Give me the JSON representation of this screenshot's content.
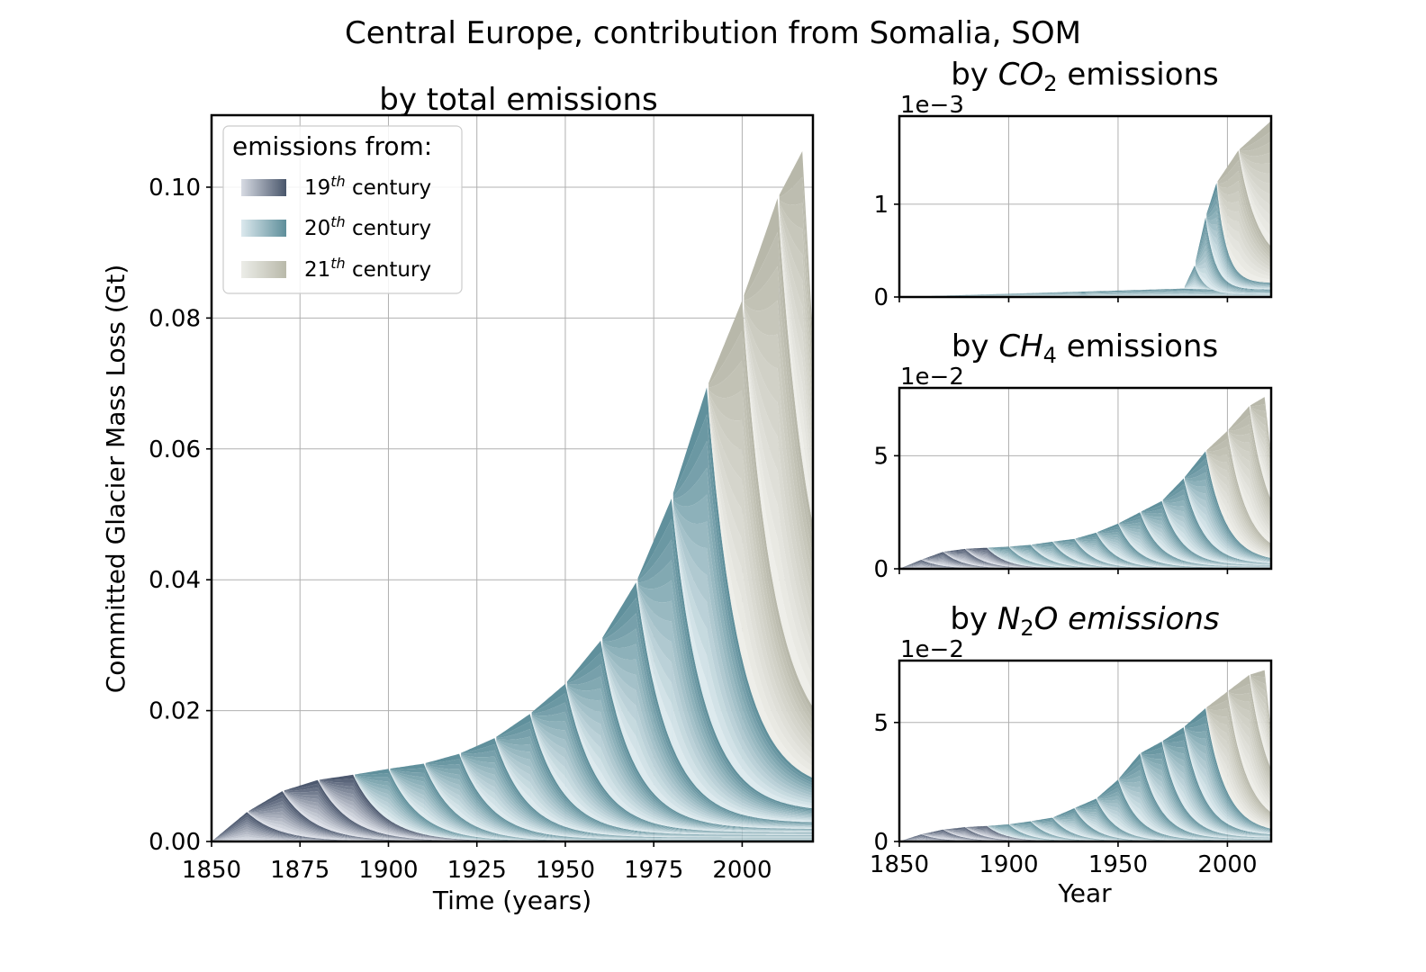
{
  "figure": {
    "suptitle": "Central Europe, contribution from Somalia, SOM"
  },
  "legend": {
    "title": "emissions from:",
    "entries": [
      {
        "base": "19",
        "sup": "th",
        "rest": " century",
        "colors": [
          "#d7dbe3",
          "#49566b"
        ]
      },
      {
        "base": "20",
        "sup": "th",
        "rest": " century",
        "colors": [
          "#dce9ee",
          "#5e8e9a"
        ]
      },
      {
        "base": "21",
        "sup": "th",
        "rest": " century",
        "colors": [
          "#ecede8",
          "#b9b9aa"
        ]
      }
    ]
  },
  "colors": {
    "c19_light": "#e2e5ec",
    "c19_dark": "#46536a",
    "c20_light": "#e3eef2",
    "c20_dark": "#5a8c98",
    "c21_light": "#f0f0ec",
    "c21_dark": "#b6b6a7"
  },
  "chart_data": [
    {
      "id": "total",
      "type": "area",
      "title": "by total emissions",
      "xlabel": "Time (years)",
      "ylabel": "Committed Glacier Mass Loss (Gt)",
      "xlim": [
        1850,
        2020
      ],
      "ylim": [
        0,
        0.111
      ],
      "xticks": [
        "1850",
        "1875",
        "1900",
        "1925",
        "1950",
        "1975",
        "2000"
      ],
      "yticks": [
        "0.00",
        "0.02",
        "0.04",
        "0.06",
        "0.08",
        "0.10"
      ],
      "offset_label": "",
      "grid": true,
      "legend_position": "upper-left",
      "peaks": [
        {
          "x": 1860,
          "y": 0.0045
        },
        {
          "x": 1870,
          "y": 0.0077
        },
        {
          "x": 1880,
          "y": 0.0094
        },
        {
          "x": 1890,
          "y": 0.0102
        },
        {
          "x": 1900,
          "y": 0.0111
        },
        {
          "x": 1910,
          "y": 0.0119
        },
        {
          "x": 1920,
          "y": 0.0134
        },
        {
          "x": 1930,
          "y": 0.0158
        },
        {
          "x": 1940,
          "y": 0.0195
        },
        {
          "x": 1950,
          "y": 0.0241
        },
        {
          "x": 1960,
          "y": 0.0307
        },
        {
          "x": 1970,
          "y": 0.0396
        },
        {
          "x": 1980,
          "y": 0.0524
        },
        {
          "x": 1990,
          "y": 0.0694
        },
        {
          "x": 2000,
          "y": 0.0827
        },
        {
          "x": 2010,
          "y": 0.0983
        },
        {
          "x": 2017,
          "y": 0.1055
        }
      ],
      "floors": [
        0,
        0,
        0,
        0,
        0,
        0,
        0.0003,
        0.0006,
        0.001,
        0.0014,
        0.0019,
        0.0028,
        0.0045,
        0.0075,
        0.013,
        0.024,
        0.04
      ],
      "end_value": 0.077
    },
    {
      "id": "co2",
      "type": "area",
      "title_prefix": "by ",
      "title_main": "CO",
      "title_sub": "2",
      "title_suffix": " emissions",
      "xlim": [
        1850,
        2020
      ],
      "ylim": [
        0,
        1.95
      ],
      "xticks": [
        "",
        "",
        "",
        ""
      ],
      "yticks": [
        "0",
        "1"
      ],
      "offset_label": "1e−3",
      "grid": true,
      "peaks": [
        {
          "x": 1980,
          "y": 0.09
        },
        {
          "x": 1985,
          "y": 0.34
        },
        {
          "x": 1990,
          "y": 0.86
        },
        {
          "x": 1995,
          "y": 1.23
        },
        {
          "x": 2005,
          "y": 1.58
        },
        {
          "x": 2020,
          "y": 1.9
        }
      ],
      "floors": [
        0,
        0.03,
        0.08,
        0.15,
        0.3,
        0.8
      ],
      "end_value": 1.9
    },
    {
      "id": "ch4",
      "type": "area",
      "title_prefix": "by ",
      "title_main": "CH",
      "title_sub": "4",
      "title_suffix": " emissions",
      "xlim": [
        1850,
        2020
      ],
      "ylim": [
        0,
        8.0
      ],
      "xticks": [
        "",
        "",
        "",
        ""
      ],
      "yticks": [
        "0",
        "5"
      ],
      "offset_label": "1e−2",
      "grid": true,
      "peaks": [
        {
          "x": 1860,
          "y": 0.4
        },
        {
          "x": 1870,
          "y": 0.75
        },
        {
          "x": 1880,
          "y": 0.88
        },
        {
          "x": 1890,
          "y": 0.93
        },
        {
          "x": 1900,
          "y": 0.98
        },
        {
          "x": 1910,
          "y": 1.06
        },
        {
          "x": 1920,
          "y": 1.2
        },
        {
          "x": 1930,
          "y": 1.32
        },
        {
          "x": 1940,
          "y": 1.6
        },
        {
          "x": 1950,
          "y": 2.0
        },
        {
          "x": 1960,
          "y": 2.5
        },
        {
          "x": 1970,
          "y": 3.0
        },
        {
          "x": 1980,
          "y": 4.0
        },
        {
          "x": 1990,
          "y": 5.2
        },
        {
          "x": 2000,
          "y": 6.1
        },
        {
          "x": 2010,
          "y": 7.2
        },
        {
          "x": 2017,
          "y": 7.6
        }
      ],
      "floors": [
        0,
        0,
        0,
        0,
        0,
        0,
        0,
        0,
        0,
        0.05,
        0.1,
        0.15,
        0.2,
        0.3,
        0.5,
        1.0,
        2.2
      ],
      "end_value": 5.0
    },
    {
      "id": "n2o",
      "type": "area",
      "title_prefix": "by ",
      "title_main": "N",
      "title_sub": "2",
      "title_suffix": "O emissions",
      "xlabel": "Year",
      "xlim": [
        1850,
        2020
      ],
      "ylim": [
        0,
        7.6
      ],
      "xticks": [
        "1850",
        "1900",
        "1950",
        "2000"
      ],
      "yticks": [
        "0",
        "5"
      ],
      "offset_label": "1e−2",
      "grid": true,
      "peaks": [
        {
          "x": 1860,
          "y": 0.3
        },
        {
          "x": 1870,
          "y": 0.5
        },
        {
          "x": 1880,
          "y": 0.6
        },
        {
          "x": 1890,
          "y": 0.65
        },
        {
          "x": 1900,
          "y": 0.72
        },
        {
          "x": 1910,
          "y": 0.85
        },
        {
          "x": 1920,
          "y": 1.0
        },
        {
          "x": 1930,
          "y": 1.4
        },
        {
          "x": 1940,
          "y": 1.8
        },
        {
          "x": 1950,
          "y": 2.6
        },
        {
          "x": 1960,
          "y": 3.7
        },
        {
          "x": 1970,
          "y": 4.2
        },
        {
          "x": 1980,
          "y": 4.8
        },
        {
          "x": 1990,
          "y": 5.6
        },
        {
          "x": 2000,
          "y": 6.3
        },
        {
          "x": 2010,
          "y": 7.0
        },
        {
          "x": 2017,
          "y": 7.2
        }
      ],
      "floors": [
        0,
        0,
        0,
        0,
        0,
        0,
        0,
        0,
        0,
        0.05,
        0.1,
        0.15,
        0.25,
        0.35,
        0.6,
        1.1,
        2.2
      ],
      "end_value": 4.6
    }
  ]
}
